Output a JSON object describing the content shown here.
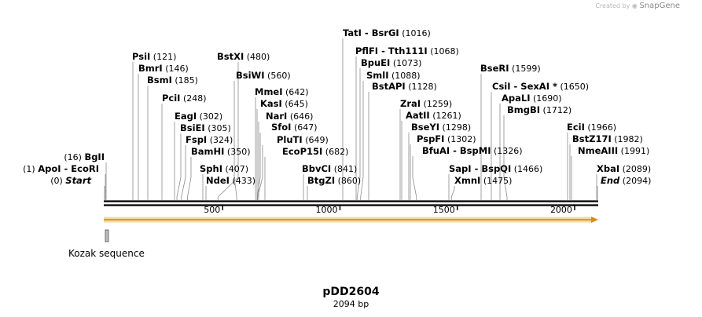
{
  "credit": {
    "prefix": "Created by",
    "brand": "SnapGene"
  },
  "plasmid": {
    "name": "pDD2604",
    "length_label": "2094 bp",
    "length_bp": 2094
  },
  "feature": {
    "label": "Kozak sequence"
  },
  "ruler": {
    "ticks": [
      {
        "bp": 500,
        "label": "500"
      },
      {
        "bp": 1000,
        "label": "1000"
      },
      {
        "bp": 1500,
        "label": "1500"
      },
      {
        "bp": 2000,
        "label": "2000"
      }
    ]
  },
  "enzymes": [
    {
      "names": [
        "TatI",
        "BsrGI"
      ],
      "pos": "(1016)",
      "bp": 1016
    },
    {
      "names": [
        "PflFI",
        "Tth111I"
      ],
      "pos": "(1068)",
      "bp": 1068
    },
    {
      "names": [
        "BpuEI"
      ],
      "pos": "(1073)",
      "bp": 1073
    },
    {
      "names": [
        "SmlI"
      ],
      "pos": "(1088)",
      "bp": 1088
    },
    {
      "names": [
        "BstAPI"
      ],
      "pos": "(1128)",
      "bp": 1128
    },
    {
      "names": [
        "PsiI"
      ],
      "pos": "(121)",
      "bp": 121
    },
    {
      "names": [
        "BstXI"
      ],
      "pos": "(480)",
      "bp": 480
    },
    {
      "names": [
        "BmrI"
      ],
      "pos": "(146)",
      "bp": 146
    },
    {
      "names": [
        "BsmI"
      ],
      "pos": "(185)",
      "bp": 185
    },
    {
      "names": [
        "BsiWI"
      ],
      "pos": "(560)",
      "bp": 560
    },
    {
      "names": [
        "PciI"
      ],
      "pos": "(248)",
      "bp": 248
    },
    {
      "names": [
        "MmeI"
      ],
      "pos": "(642)",
      "bp": 642
    },
    {
      "names": [
        "KasI"
      ],
      "pos": "(645)",
      "bp": 645
    },
    {
      "names": [
        "EagI"
      ],
      "pos": "(302)",
      "bp": 302
    },
    {
      "names": [
        "NarI"
      ],
      "pos": "(646)",
      "bp": 646
    },
    {
      "names": [
        "BsiEI"
      ],
      "pos": "(305)",
      "bp": 305
    },
    {
      "names": [
        "SfoI"
      ],
      "pos": "(647)",
      "bp": 647
    },
    {
      "names": [
        "FspI"
      ],
      "pos": "(324)",
      "bp": 324
    },
    {
      "names": [
        "PluTI"
      ],
      "pos": "(649)",
      "bp": 649
    },
    {
      "names": [
        "BamHI"
      ],
      "pos": "(350)",
      "bp": 350
    },
    {
      "names": [
        "EcoP15I"
      ],
      "pos": "(682)",
      "bp": 682
    },
    {
      "names": [
        "SphI"
      ],
      "pos": "(407)",
      "bp": 407
    },
    {
      "names": [
        "NdeI"
      ],
      "pos": "(433)",
      "bp": 433
    },
    {
      "names": [
        "BbvCI"
      ],
      "pos": "(841)",
      "bp": 841
    },
    {
      "names": [
        "BtgZI"
      ],
      "pos": "(860)",
      "bp": 860
    },
    {
      "names": [
        "BgII"
      ],
      "pos": "(16)",
      "bp": 16
    },
    {
      "names": [
        "ApoI",
        "EcoRI"
      ],
      "pos": "(1)",
      "bp": 1
    },
    {
      "names": [
        "Start"
      ],
      "pos": "(0)",
      "bp": 0
    },
    {
      "names": [
        "ZraI"
      ],
      "pos": "(1259)",
      "bp": 1259
    },
    {
      "names": [
        "AatII"
      ],
      "pos": "(1261)",
      "bp": 1261
    },
    {
      "names": [
        "BseYI"
      ],
      "pos": "(1298)",
      "bp": 1298
    },
    {
      "names": [
        "PspFI"
      ],
      "pos": "(1302)",
      "bp": 1302
    },
    {
      "names": [
        "BfuAI",
        "BspMI"
      ],
      "pos": "(1326)",
      "bp": 1326
    },
    {
      "names": [
        "SapI",
        "BspQI"
      ],
      "pos": "(1466)",
      "bp": 1466
    },
    {
      "names": [
        "XmnI"
      ],
      "pos": "(1475)",
      "bp": 1475
    },
    {
      "names": [
        "BseRI"
      ],
      "pos": "(1599)",
      "bp": 1599
    },
    {
      "names": [
        "CsiI",
        "SexAI *"
      ],
      "pos": "(1650)",
      "bp": 1650
    },
    {
      "names": [
        "ApaLI"
      ],
      "pos": "(1690)",
      "bp": 1690
    },
    {
      "names": [
        "BmgBI"
      ],
      "pos": "(1712)",
      "bp": 1712
    },
    {
      "names": [
        "EciI"
      ],
      "pos": "(1966)",
      "bp": 1966
    },
    {
      "names": [
        "BstZ17I"
      ],
      "pos": "(1982)",
      "bp": 1982
    },
    {
      "names": [
        "NmeAIII"
      ],
      "pos": "(1991)",
      "bp": 1991
    },
    {
      "names": [
        "XbaI"
      ],
      "pos": "(2089)",
      "bp": 2089
    },
    {
      "names": [
        "End"
      ],
      "pos": "(2094)",
      "bp": 2094
    }
  ]
}
